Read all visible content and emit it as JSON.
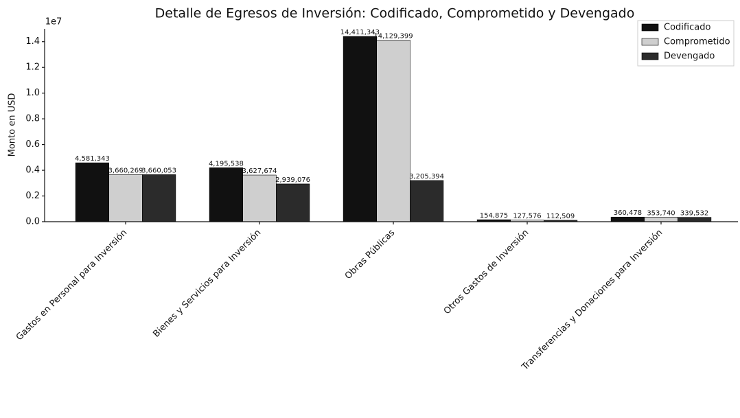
{
  "chart_data": {
    "type": "bar",
    "title": "Detalle de Egresos de Inversión: Codificado, Comprometido y Devengado",
    "y_label": "Monto en USD",
    "y_offset_label": "1e7",
    "categories": [
      "Gastos en Personal para Inversión",
      "Bienes y Servicios para Inversión",
      "Obras Públicas",
      "Otros Gastos de Inversión",
      "Transferencias y Donaciones para Inversión"
    ],
    "series": [
      {
        "name": "Codificado",
        "color": "#111111",
        "values": [
          4581343,
          4195538,
          14411343,
          154875,
          360478
        ],
        "value_labels": [
          "4,581,343",
          "4,195,538",
          "14,411,343",
          "154,875",
          "360,478"
        ]
      },
      {
        "name": "Comprometido",
        "color": "#cfcfcf",
        "values": [
          3660269,
          3627674,
          14129399,
          127576,
          353740
        ],
        "value_labels": [
          "3,660,269",
          "3,627,674",
          "14,129,399",
          "127,576",
          "353,740"
        ]
      },
      {
        "name": "Devengado",
        "color": "#2b2b2b",
        "values": [
          3660053,
          2939076,
          3205394,
          112509,
          339532
        ],
        "value_labels": [
          "3,660,053",
          "2,939,076",
          "3,205,394",
          "112,509",
          "339,532"
        ]
      }
    ],
    "ylim": [
      0,
      15000000
    ],
    "yticks": [
      {
        "value": 0,
        "label": "0.0"
      },
      {
        "value": 2000000,
        "label": "0.2"
      },
      {
        "value": 4000000,
        "label": "0.4"
      },
      {
        "value": 6000000,
        "label": "0.6"
      },
      {
        "value": 8000000,
        "label": "0.8"
      },
      {
        "value": 10000000,
        "label": "1.0"
      },
      {
        "value": 12000000,
        "label": "1.2"
      },
      {
        "value": 14000000,
        "label": "1.4"
      }
    ],
    "legend": "upper right"
  }
}
